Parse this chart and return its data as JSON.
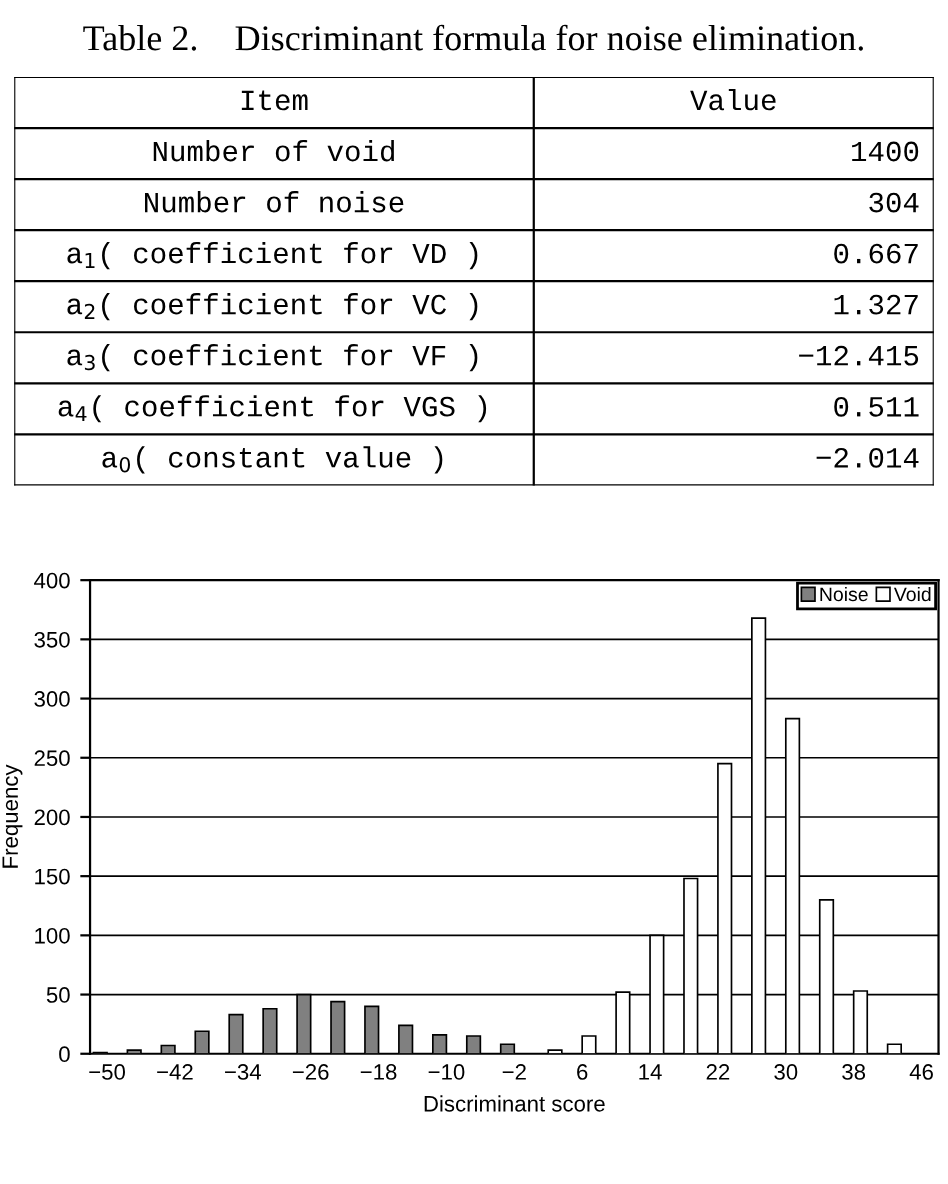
{
  "chart_data": [
    {
      "type": "other",
      "title": "Table 2.    Discriminant formula for noise elimination.",
      "annotations": [
        "Item",
        "Value",
        "Number of void",
        "1400",
        "Number of noise",
        "304",
        "a$_{1}$( coefficient for VD )",
        "0.667",
        "a$_{2}$( coefficient for VC )",
        "1.327",
        "a$_{3}$( coefficient for VF )",
        "−12.415",
        "a$_{4}$( coefficient for VGS )",
        "0.511",
        "a$_{0}$( constant value )",
        "−2.014"
      ]
    },
    {
      "type": "bar",
      "xlabel": "Discriminant score",
      "ylabel": "Frequency",
      "categories": [
        "−50",
        null,
        "−42",
        null,
        "−34",
        null,
        "−26",
        null,
        "−18",
        null,
        "−10",
        null,
        "−2",
        null,
        "6",
        null,
        "14",
        null,
        "22",
        null,
        "30",
        null,
        "38",
        null,
        "46"
      ],
      "series": [
        {
          "name": "Noise",
          "color": "#808080",
          "values": [
            1,
            3,
            7,
            19,
            33,
            38,
            50,
            44,
            40,
            24,
            16,
            15,
            8,
            0,
            0,
            0,
            0,
            0,
            0,
            0,
            0,
            0,
            0,
            0,
            0
          ]
        },
        {
          "name": "Void",
          "color": "#ffffff",
          "values": [
            0,
            0,
            0,
            0,
            0,
            0,
            0,
            0,
            0,
            0,
            0,
            0,
            0,
            3,
            15,
            52,
            100,
            148,
            245,
            368,
            283,
            130,
            53,
            8,
            0
          ]
        }
      ],
      "ylim": [
        0,
        400
      ],
      "yticks": [
        0,
        50,
        100,
        150,
        200,
        250,
        300,
        350,
        400
      ],
      "grid": "y",
      "legend": "top right"
    }
  ]
}
